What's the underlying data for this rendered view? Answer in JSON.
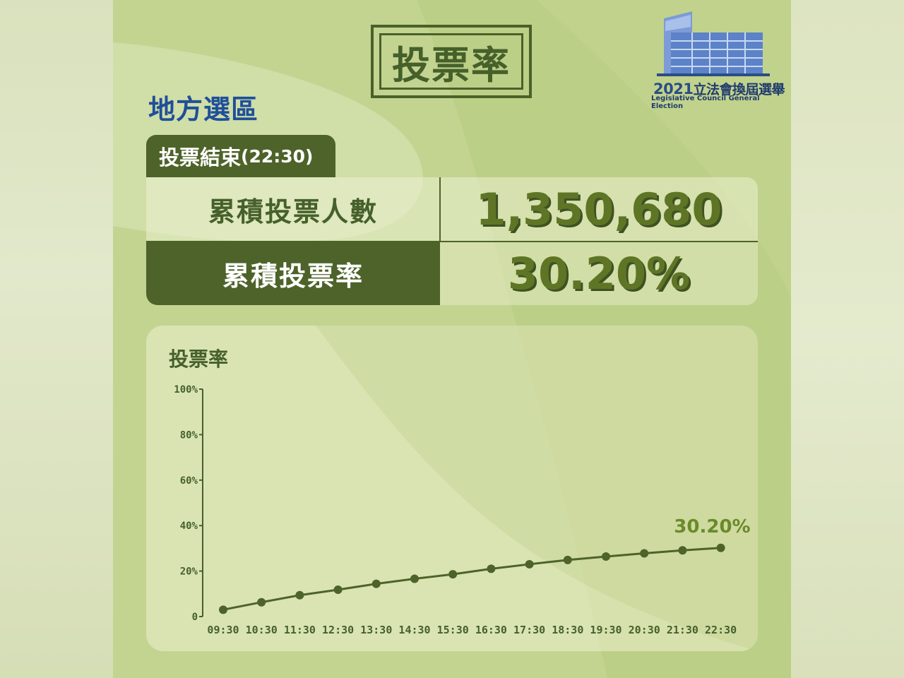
{
  "header": {
    "title": "投票率"
  },
  "logo": {
    "year": "2021",
    "title_zh": "立法會換屆選舉",
    "title_en": "Legislative Council General Election",
    "icon": "legco-building-icon"
  },
  "district": "地方選區",
  "status_tab": {
    "label": "投票結束",
    "time": "(22:30)"
  },
  "summary": {
    "cumulative_voters_label": "累積投票人數",
    "cumulative_voters_value": "1,350,680",
    "cumulative_rate_label": "累積投票率",
    "cumulative_rate_value": "30.20%"
  },
  "colors": {
    "dark_green": "#4d6329",
    "text_green": "#46602b",
    "accent_blue": "#1f4f9a",
    "bg_green": "#bccf86"
  },
  "chart_data": {
    "type": "line",
    "title": "投票率",
    "categories": [
      "09:30",
      "10:30",
      "11:30",
      "12:30",
      "13:30",
      "14:30",
      "15:30",
      "16:30",
      "17:30",
      "18:30",
      "19:30",
      "20:30",
      "21:30",
      "22:30"
    ],
    "values": [
      3.0,
      6.3,
      9.4,
      11.8,
      14.4,
      16.6,
      18.6,
      21.0,
      23.0,
      24.9,
      26.4,
      27.8,
      29.1,
      30.2
    ],
    "yticks": [
      "0",
      "20%",
      "40%",
      "60%",
      "80%",
      "100%"
    ],
    "ylim": [
      0,
      100
    ],
    "end_label": "30.20%",
    "grid": false
  }
}
